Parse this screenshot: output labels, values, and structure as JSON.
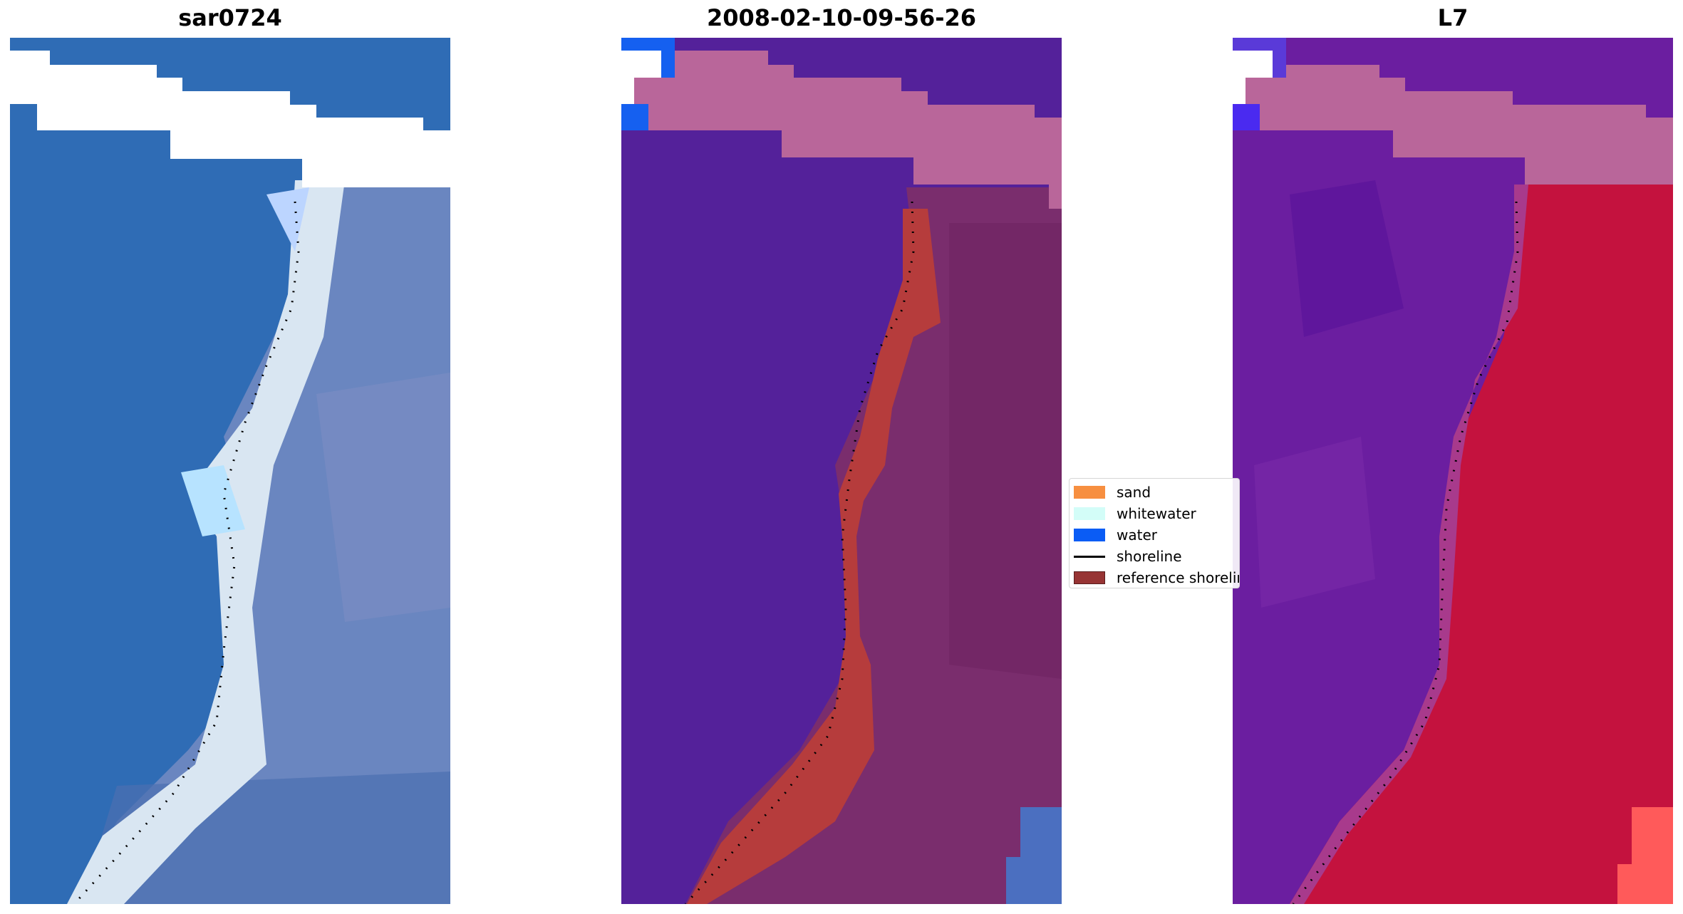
{
  "panels": [
    {
      "title": "sar0724",
      "kind": "rgb-image"
    },
    {
      "title": "2008-02-10-09-56-26",
      "kind": "classified-image"
    },
    {
      "title": "L7",
      "kind": "index-image"
    }
  ],
  "legend": {
    "items": [
      {
        "label": "sand",
        "color": "#f78f40",
        "type": "patch"
      },
      {
        "label": "whitewater",
        "color": "#d3fdf8",
        "type": "patch"
      },
      {
        "label": "water",
        "color": "#0a5cf5",
        "type": "patch"
      },
      {
        "label": "shoreline",
        "color": "#000000",
        "type": "line"
      },
      {
        "label": "reference shoreline",
        "color": "#973434",
        "type": "patch"
      }
    ]
  },
  "colors": {
    "ocean_rgb": "#2f6cb5",
    "beach_rgb": "#d9e6f2",
    "land_rgb": "#6a86c0",
    "class_water": "#54219a",
    "class_land": "#7a2d6d",
    "class_cloud": "#b9669a",
    "class_reference": "#b63c3c",
    "class_water_bright": "#1560f0",
    "index_water": "#6b1ea0",
    "index_land": "#c4123e",
    "index_cloud": "#b9669a"
  }
}
